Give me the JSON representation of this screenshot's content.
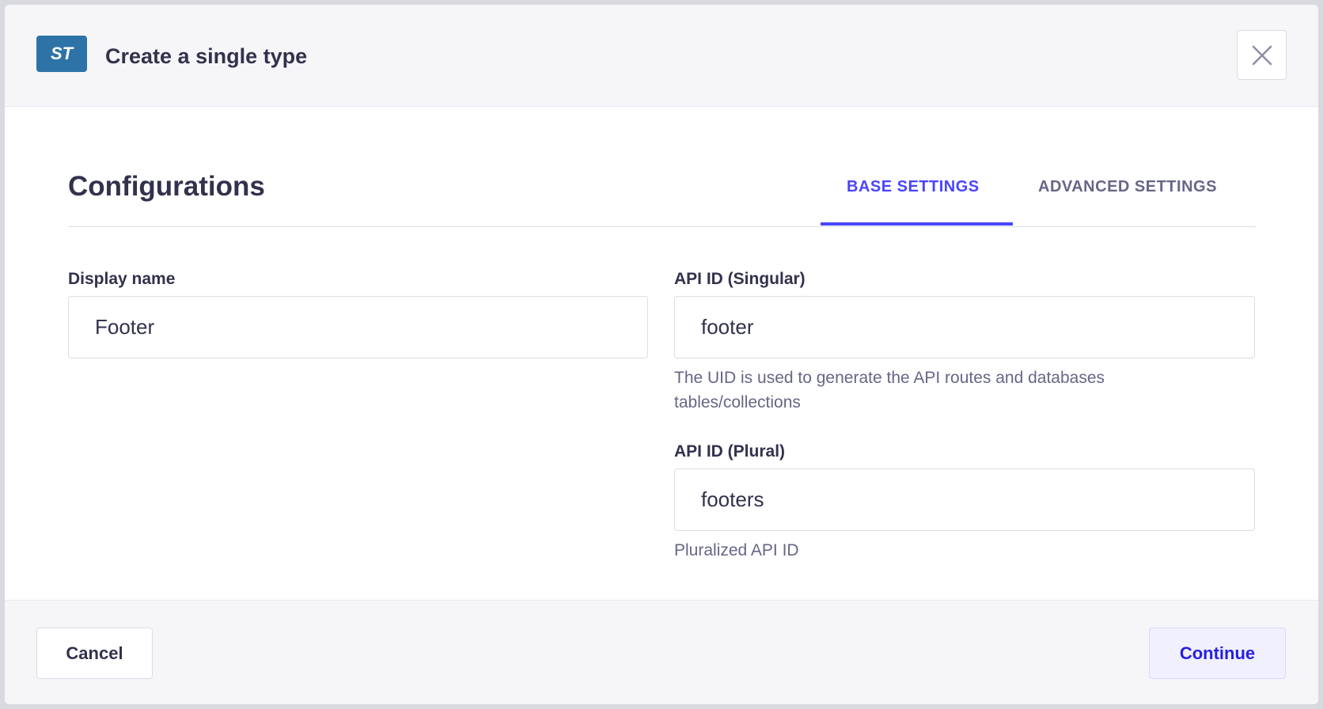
{
  "header": {
    "badge": "ST",
    "title": "Create a single type"
  },
  "main": {
    "heading": "Configurations",
    "tabs": [
      {
        "label": "BASE SETTINGS",
        "active": true
      },
      {
        "label": "ADVANCED SETTINGS",
        "active": false
      }
    ],
    "fields": {
      "display_name": {
        "label": "Display name",
        "value": "Footer"
      },
      "api_singular": {
        "label": "API ID (Singular)",
        "value": "footer",
        "hint": "The UID is used to generate the API routes and databases tables/collections"
      },
      "api_plural": {
        "label": "API ID (Plural)",
        "value": "footers",
        "hint": "Pluralized API ID"
      }
    }
  },
  "footer": {
    "cancel": "Cancel",
    "continue": "Continue"
  },
  "colors": {
    "accent": "#4945ff",
    "badge": "#2e73a8"
  }
}
